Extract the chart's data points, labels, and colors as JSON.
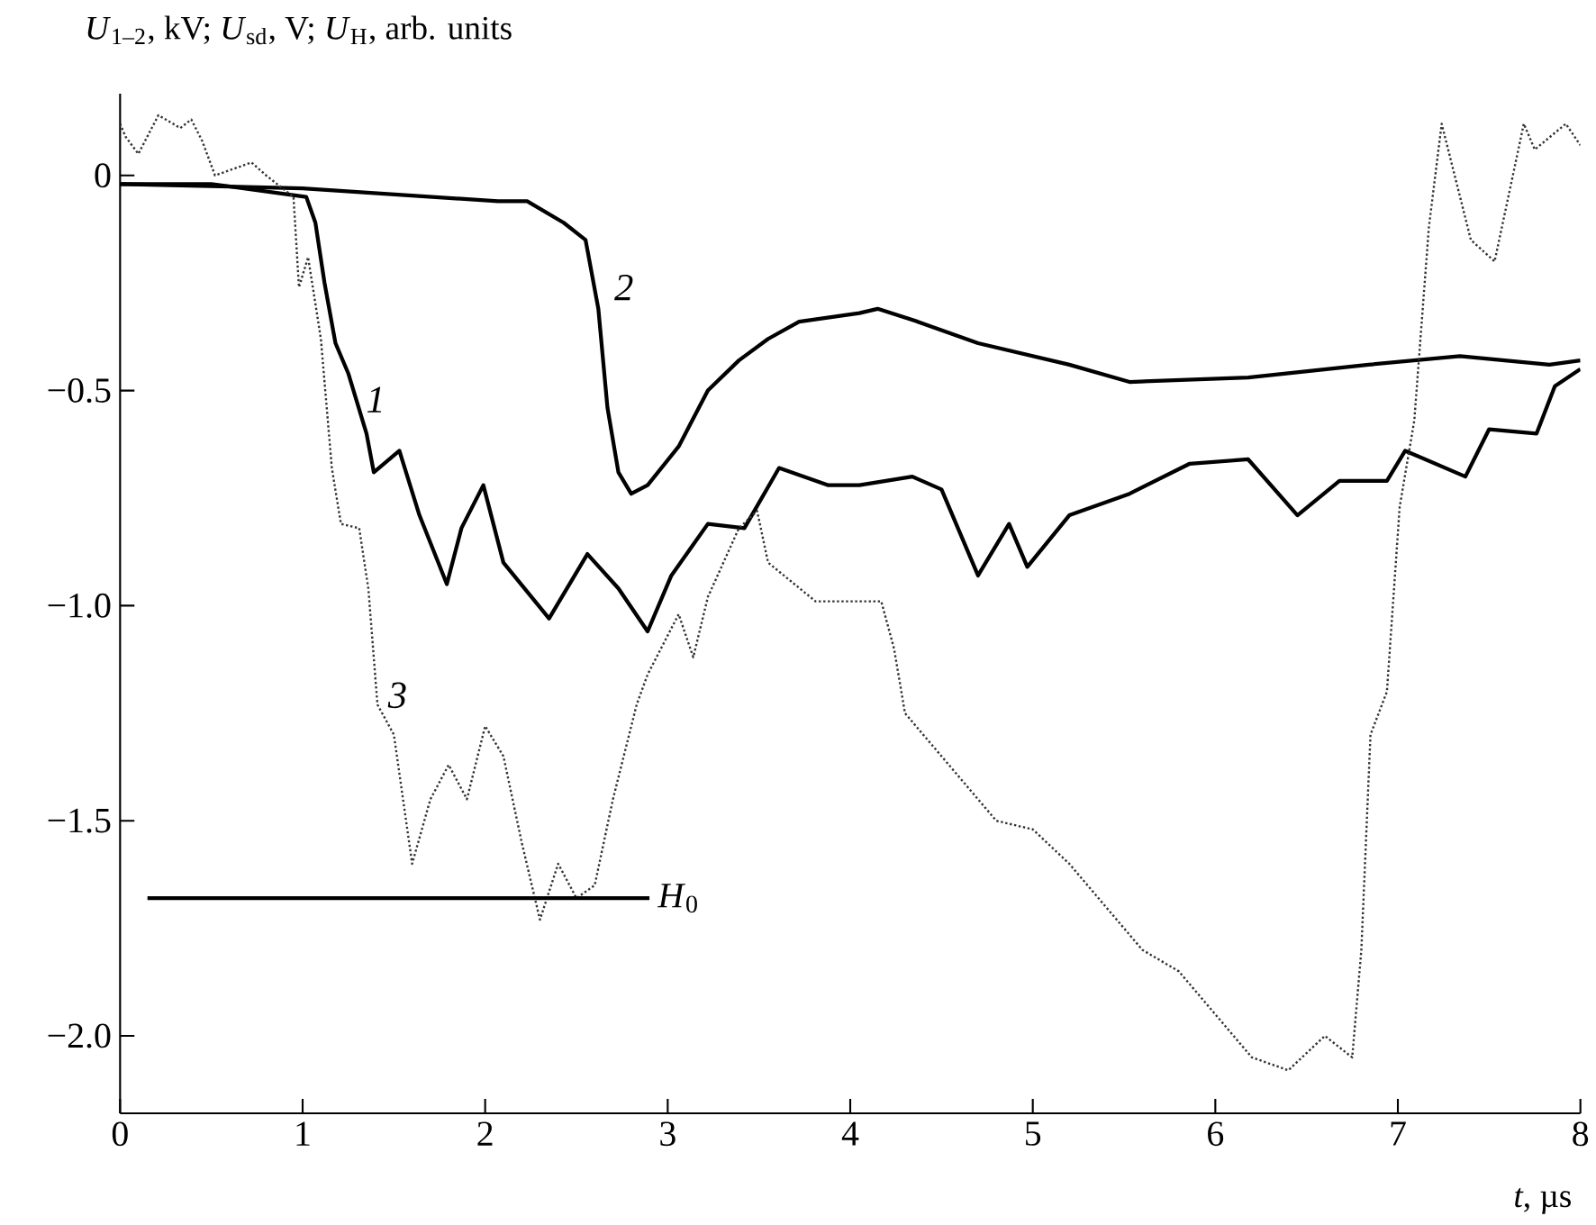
{
  "chart_data": {
    "type": "line",
    "xlabel": "*t*, µs",
    "ylabel": "*U*$_{1–2}$, kV; *U*$_{sd}$, V; *U*$_{H}$, arb. units",
    "xlim": [
      0,
      8
    ],
    "ylim": [
      -2.18,
      0.19
    ],
    "xticks": [
      0,
      1,
      2,
      3,
      4,
      5,
      6,
      7,
      8
    ],
    "yticks": [
      0,
      {
        "value": -0.5,
        "label": "−0.5"
      },
      {
        "value": -1.0,
        "label": "−1.0"
      },
      {
        "value": -1.5,
        "label": "−1.5"
      },
      {
        "value": -2.0,
        "label": "−2.0"
      }
    ],
    "grid": false,
    "legend": false,
    "marker": "none",
    "series": [
      {
        "color": "#000000",
        "line_style": "solid",
        "x": [
          0,
          0.5,
          1.02,
          1.07,
          1.12,
          1.18,
          1.25,
          1.35,
          1.39,
          1.53,
          1.64,
          1.79,
          1.87,
          1.99,
          2.1,
          2.35,
          2.56,
          2.73,
          2.89,
          3.02,
          3.22,
          3.42,
          3.61,
          3.88,
          4.05,
          4.34,
          4.5,
          4.7,
          4.87,
          4.97,
          5.2,
          5.53,
          5.86,
          6.18,
          6.45,
          6.68,
          6.94,
          7.04,
          7.37,
          7.5,
          7.76,
          7.86,
          8.0
        ],
        "values": [
          -0.02,
          -0.02,
          -0.05,
          -0.11,
          -0.25,
          -0.39,
          -0.46,
          -0.6,
          -0.69,
          -0.64,
          -0.79,
          -0.95,
          -0.82,
          -0.72,
          -0.9,
          -1.03,
          -0.88,
          -0.96,
          -1.06,
          -0.93,
          -0.81,
          -0.82,
          -0.68,
          -0.72,
          -0.72,
          -0.7,
          -0.73,
          -0.93,
          -0.81,
          -0.91,
          -0.79,
          -0.74,
          -0.67,
          -0.66,
          -0.79,
          -0.71,
          -0.71,
          -0.64,
          -0.7,
          -0.59,
          -0.6,
          -0.49,
          -0.45
        ]
      },
      {
        "color": "#000000",
        "line_style": "solid",
        "x": [
          0,
          1,
          2.07,
          2.23,
          2.43,
          2.55,
          2.62,
          2.67,
          2.73,
          2.8,
          2.89,
          3.06,
          3.22,
          3.39,
          3.55,
          3.72,
          4.05,
          4.15,
          4.37,
          4.7,
          5.2,
          5.53,
          6.18,
          6.84,
          7.34,
          7.83,
          8.0
        ],
        "values": [
          -0.02,
          -0.03,
          -0.06,
          -0.06,
          -0.11,
          -0.15,
          -0.31,
          -0.54,
          -0.69,
          -0.74,
          -0.72,
          -0.63,
          -0.5,
          -0.43,
          -0.38,
          -0.34,
          -0.32,
          -0.31,
          -0.34,
          -0.39,
          -0.44,
          -0.48,
          -0.47,
          -0.44,
          -0.42,
          -0.44,
          -0.43
        ]
      },
      {
        "color": "#333333",
        "line_style": "dotted",
        "x": [
          0,
          0.03,
          0.1,
          0.21,
          0.33,
          0.39,
          0.45,
          0.52,
          0.72,
          0.76,
          0.77,
          0.8,
          0.85,
          0.9,
          0.93,
          0.95,
          0.98,
          1.03,
          1.1,
          1.16,
          1.21,
          1.31,
          1.36,
          1.41,
          1.5,
          1.6,
          1.7,
          1.8,
          1.9,
          2.0,
          2.1,
          2.2,
          2.3,
          2.4,
          2.5,
          2.6,
          2.7,
          2.83,
          2.89,
          3.06,
          3.14,
          3.22,
          3.39,
          3.49,
          3.55,
          3.81,
          4.05,
          4.17,
          4.24,
          4.3,
          4.4,
          4.6,
          4.8,
          5.0,
          5.2,
          5.4,
          5.6,
          5.8,
          6.0,
          6.2,
          6.4,
          6.6,
          6.75,
          6.8,
          6.85,
          6.94,
          7.01,
          7.09,
          7.17,
          7.24,
          7.3,
          7.4,
          7.53,
          7.61,
          7.69,
          7.75,
          7.82,
          7.92,
          8.0
        ],
        "values": [
          0.12,
          0.09,
          0.05,
          0.14,
          0.11,
          0.13,
          0.08,
          0,
          0.03,
          null,
          null,
          0.0,
          null,
          null,
          null,
          -0.05,
          -0.26,
          -0.19,
          -0.38,
          -0.68,
          -0.81,
          -0.82,
          -0.96,
          -1.23,
          -1.3,
          -1.6,
          -1.45,
          -1.37,
          -1.45,
          -1.28,
          -1.35,
          -1.55,
          -1.73,
          -1.6,
          -1.68,
          -1.65,
          -1.45,
          -1.23,
          -1.16,
          -1.02,
          -1.12,
          -0.98,
          -0.82,
          -0.78,
          -0.9,
          -0.99,
          -0.99,
          -0.99,
          -1.1,
          -1.25,
          -1.3,
          -1.4,
          -1.5,
          -1.52,
          -1.6,
          -1.7,
          -1.8,
          -1.85,
          -1.95,
          -2.05,
          -2.08,
          -2.0,
          -2.05,
          -1.8,
          -1.3,
          -1.2,
          -0.77,
          -0.57,
          -0.12,
          0.12,
          null,
          -0.15,
          -0.2,
          null,
          0.12,
          0.06,
          null,
          0.12,
          0.07
        ]
      },
      {
        "name": "*H*$_{0}$",
        "color": "#000000",
        "line_style": "solid",
        "x": [
          0.15,
          2.9
        ],
        "values": [
          -1.68,
          -1.68
        ]
      }
    ],
    "annotations": [
      "1",
      "2",
      "3"
    ]
  }
}
